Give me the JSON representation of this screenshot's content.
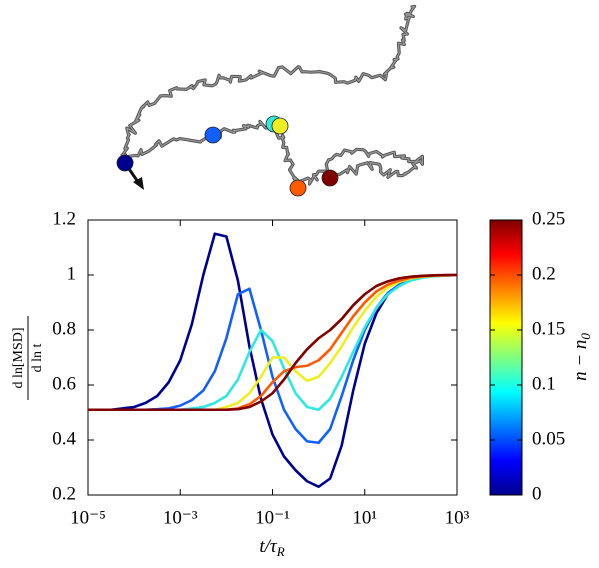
{
  "chart_data": {
    "type": "line",
    "x_label": {
      "main": "t/τ",
      "sub": "R"
    },
    "y_label": {
      "numerator": "d ln[MSD]",
      "denominator": "d ln t"
    },
    "x_scale": "log",
    "xlim": [
      1e-05,
      1000
    ],
    "xticks": [
      {
        "value": 1e-05,
        "label": "10⁻⁵"
      },
      {
        "value": 0.001,
        "label": "10⁻³"
      },
      {
        "value": 0.1,
        "label": "10⁻¹"
      },
      {
        "value": 10,
        "label": "10¹"
      },
      {
        "value": 1000,
        "label": "10³"
      }
    ],
    "ylim": [
      0.2,
      1.2
    ],
    "yticks": [
      0.2,
      0.4,
      0.6,
      0.8,
      1,
      1.2
    ],
    "x": [
      1e-05,
      1.778e-05,
      3.162e-05,
      5.623e-05,
      0.0001,
      0.0001778,
      0.0003162,
      0.0005623,
      0.001,
      0.001778,
      0.003162,
      0.005623,
      0.01,
      0.01778,
      0.03162,
      0.05623,
      0.1,
      0.1778,
      0.3162,
      0.5623,
      1,
      1.778,
      3.162,
      5.623,
      10,
      17.78,
      31.62,
      56.23,
      100,
      177.8,
      316.2,
      562.3,
      1000
    ],
    "series": [
      {
        "color": "#00008f",
        "values": [
          0.51,
          0.51,
          0.51,
          0.515,
          0.52,
          0.535,
          0.56,
          0.61,
          0.69,
          0.82,
          1.0,
          1.15,
          1.14,
          0.98,
          0.74,
          0.55,
          0.42,
          0.34,
          0.29,
          0.25,
          0.23,
          0.26,
          0.38,
          0.58,
          0.75,
          0.86,
          0.93,
          0.965,
          0.985,
          0.993,
          0.997,
          0.999,
          1.0
        ]
      },
      {
        "color": "#1060ff",
        "values": [
          0.51,
          0.51,
          0.51,
          0.51,
          0.51,
          0.51,
          0.512,
          0.515,
          0.525,
          0.545,
          0.58,
          0.65,
          0.77,
          0.93,
          0.95,
          0.8,
          0.63,
          0.51,
          0.44,
          0.395,
          0.39,
          0.44,
          0.56,
          0.69,
          0.8,
          0.88,
          0.935,
          0.965,
          0.983,
          0.992,
          0.996,
          0.998,
          1.0
        ]
      },
      {
        "color": "#30e8e0",
        "values": [
          0.51,
          0.51,
          0.51,
          0.51,
          0.51,
          0.51,
          0.51,
          0.51,
          0.51,
          0.515,
          0.52,
          0.535,
          0.56,
          0.62,
          0.72,
          0.8,
          0.76,
          0.66,
          0.57,
          0.52,
          0.51,
          0.55,
          0.63,
          0.72,
          0.81,
          0.88,
          0.93,
          0.96,
          0.98,
          0.99,
          0.995,
          0.998,
          1.0
        ]
      },
      {
        "color": "#eeee20",
        "values": [
          0.51,
          0.51,
          0.51,
          0.51,
          0.51,
          0.51,
          0.51,
          0.51,
          0.51,
          0.51,
          0.51,
          0.51,
          0.52,
          0.535,
          0.57,
          0.63,
          0.7,
          0.7,
          0.65,
          0.615,
          0.63,
          0.68,
          0.74,
          0.81,
          0.87,
          0.92,
          0.955,
          0.975,
          0.988,
          0.994,
          0.997,
          0.999,
          1.0
        ]
      },
      {
        "color": "#ff5a00",
        "values": [
          0.51,
          0.51,
          0.51,
          0.51,
          0.51,
          0.51,
          0.51,
          0.51,
          0.51,
          0.51,
          0.51,
          0.51,
          0.51,
          0.515,
          0.53,
          0.56,
          0.61,
          0.65,
          0.665,
          0.67,
          0.69,
          0.73,
          0.79,
          0.85,
          0.9,
          0.94,
          0.965,
          0.98,
          0.99,
          0.995,
          0.998,
          0.999,
          1.0
        ]
      },
      {
        "color": "#800000",
        "values": [
          0.51,
          0.51,
          0.51,
          0.51,
          0.51,
          0.51,
          0.51,
          0.51,
          0.51,
          0.51,
          0.51,
          0.51,
          0.51,
          0.512,
          0.52,
          0.54,
          0.57,
          0.62,
          0.68,
          0.73,
          0.77,
          0.8,
          0.84,
          0.89,
          0.93,
          0.96,
          0.977,
          0.988,
          0.994,
          0.997,
          0.999,
          1.0,
          1.0
        ]
      }
    ],
    "colorbar": {
      "label": {
        "main": "n − n",
        "sub": "0"
      },
      "lim": [
        0,
        0.25
      ],
      "ticks": [
        0,
        0.05,
        0.1,
        0.15,
        0.2,
        0.25
      ],
      "colormap": "jet"
    }
  }
}
